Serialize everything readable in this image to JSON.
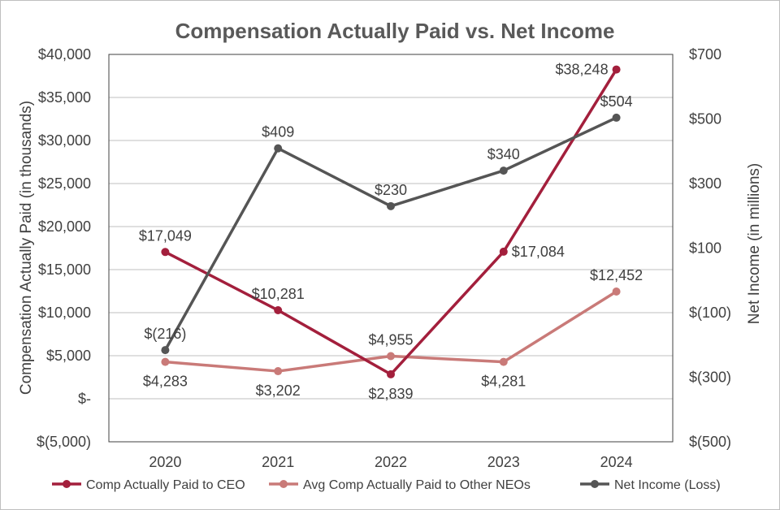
{
  "chart_data": {
    "type": "line",
    "title": "Compensation Actually Paid vs. Net Income",
    "categories": [
      "2020",
      "2021",
      "2022",
      "2023",
      "2024"
    ],
    "ylabel": "Compensation Actually Paid (in thousands)",
    "y2label": "Net Income (in millions)",
    "ylim": [
      -5000,
      40000
    ],
    "y2lim": [
      -500,
      700
    ],
    "yticks": [
      -5000,
      0,
      5000,
      10000,
      15000,
      20000,
      25000,
      30000,
      35000,
      40000
    ],
    "ytick_labels": [
      "$(5,000)",
      "$-",
      "$5,000",
      "$10,000",
      "$15,000",
      "$20,000",
      "$25,000",
      "$30,000",
      "$35,000",
      "$40,000"
    ],
    "y2ticks": [
      -500,
      -300,
      -100,
      100,
      300,
      500,
      700
    ],
    "y2tick_labels": [
      "$(500)",
      "$(300)",
      "$(100)",
      "$100",
      "$300",
      "$500",
      "$700"
    ],
    "grid": true,
    "legend_position": "bottom",
    "series": [
      {
        "name": "Comp Actually Paid to CEO",
        "axis": "left",
        "color": "#a31f3c",
        "values": [
          17049,
          10281,
          2839,
          17084,
          38248
        ],
        "labels": [
          "$17,049",
          "$10,281",
          "$2,839",
          "$17,084",
          "$38,248"
        ],
        "label_pos": [
          "above",
          "above",
          "below",
          "right",
          "left"
        ]
      },
      {
        "name": "Avg Comp Actually Paid to Other NEOs",
        "axis": "left",
        "color": "#c97a78",
        "values": [
          4283,
          3202,
          4955,
          4281,
          12452
        ],
        "labels": [
          "$4,283",
          "$3,202",
          "$4,955",
          "$4,281",
          "$12,452"
        ],
        "label_pos": [
          "below",
          "below",
          "above",
          "below",
          "above"
        ]
      },
      {
        "name": "Net Income (Loss)",
        "axis": "right",
        "color": "#555555",
        "values": [
          -216,
          409,
          230,
          340,
          504
        ],
        "labels": [
          "$(216)",
          "$409",
          "$230",
          "$340",
          "$504"
        ],
        "label_pos": [
          "above",
          "above",
          "above",
          "above",
          "above"
        ]
      }
    ]
  }
}
